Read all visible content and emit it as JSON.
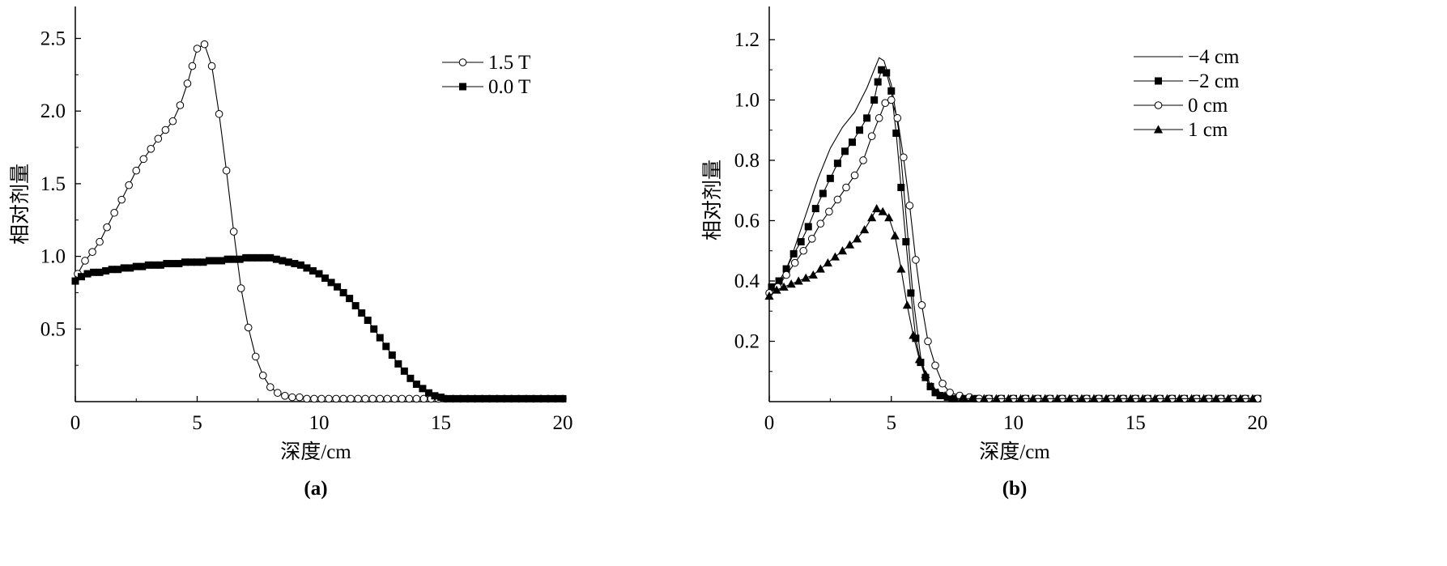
{
  "chart_data": [
    {
      "panel_label": "(a)",
      "type": "line",
      "xlabel": "深度/cm",
      "ylabel": "相对剂量",
      "xlim": [
        0,
        20
      ],
      "ylim": [
        0,
        2.72
      ],
      "xticks": [
        0,
        5,
        10,
        15,
        20
      ],
      "yticks": [
        0.5,
        1.0,
        1.5,
        2.0,
        2.5
      ],
      "ytick_labels": [
        "0.5",
        "1.0",
        "1.5",
        "2.0",
        "2.5"
      ],
      "grid": false,
      "legend_position": "top-right",
      "series": [
        {
          "name": "1.5 T",
          "marker": "open-circle",
          "x": [
            0.1,
            0.4,
            0.7,
            1.0,
            1.3,
            1.6,
            1.9,
            2.2,
            2.5,
            2.8,
            3.1,
            3.4,
            3.7,
            4.0,
            4.3,
            4.6,
            4.8,
            5.0,
            5.3,
            5.6,
            5.9,
            6.2,
            6.5,
            6.8,
            7.1,
            7.4,
            7.7,
            8.0,
            8.3,
            8.6,
            8.9,
            9.2,
            9.5,
            9.8,
            10.1,
            10.4,
            10.7,
            11.0,
            11.3,
            11.6,
            11.9,
            12.2,
            12.5,
            12.8,
            13.1,
            13.4,
            13.7,
            14.0,
            14.3,
            14.6,
            14.9,
            15.2,
            15.5,
            15.8,
            16.1,
            16.4,
            16.7,
            17.0,
            17.3,
            17.6,
            17.9,
            18.2,
            18.5,
            18.8,
            19.1,
            19.4,
            19.7,
            20.0
          ],
          "values": [
            0.88,
            0.97,
            1.03,
            1.1,
            1.2,
            1.3,
            1.39,
            1.49,
            1.59,
            1.67,
            1.74,
            1.81,
            1.87,
            1.93,
            2.04,
            2.19,
            2.31,
            2.43,
            2.46,
            2.31,
            1.98,
            1.59,
            1.17,
            0.78,
            0.51,
            0.31,
            0.18,
            0.1,
            0.06,
            0.04,
            0.03,
            0.03,
            0.02,
            0.02,
            0.02,
            0.02,
            0.02,
            0.02,
            0.02,
            0.02,
            0.02,
            0.02,
            0.02,
            0.02,
            0.02,
            0.02,
            0.02,
            0.02,
            0.02,
            0.02,
            0.02,
            0.02,
            0.02,
            0.02,
            0.02,
            0.02,
            0.02,
            0.02,
            0.02,
            0.02,
            0.02,
            0.02,
            0.02,
            0.02,
            0.02,
            0.02,
            0.02,
            0.02
          ]
        },
        {
          "name": "0.0 T",
          "marker": "filled-square",
          "x": [
            0.0,
            0.25,
            0.5,
            0.75,
            1.0,
            1.25,
            1.5,
            1.75,
            2.0,
            2.25,
            2.5,
            2.75,
            3.0,
            3.25,
            3.5,
            3.75,
            4.0,
            4.25,
            4.5,
            4.75,
            5.0,
            5.25,
            5.5,
            5.75,
            6.0,
            6.25,
            6.5,
            6.75,
            7.0,
            7.25,
            7.5,
            7.75,
            8.0,
            8.25,
            8.5,
            8.75,
            9.0,
            9.25,
            9.5,
            9.75,
            10.0,
            10.25,
            10.5,
            10.75,
            11.0,
            11.25,
            11.5,
            11.75,
            12.0,
            12.25,
            12.5,
            12.75,
            13.0,
            13.25,
            13.5,
            13.75,
            14.0,
            14.25,
            14.5,
            14.75,
            15.0,
            15.25,
            15.5,
            15.75,
            16.0,
            16.25,
            16.5,
            16.75,
            17.0,
            17.25,
            17.5,
            17.75,
            18.0,
            18.25,
            18.5,
            18.75,
            19.0,
            19.25,
            19.5,
            19.75,
            20.0
          ],
          "values": [
            0.83,
            0.86,
            0.88,
            0.89,
            0.89,
            0.9,
            0.91,
            0.91,
            0.92,
            0.92,
            0.93,
            0.93,
            0.94,
            0.94,
            0.94,
            0.95,
            0.95,
            0.95,
            0.96,
            0.96,
            0.96,
            0.96,
            0.97,
            0.97,
            0.97,
            0.98,
            0.98,
            0.98,
            0.99,
            0.99,
            0.99,
            0.99,
            0.99,
            0.98,
            0.97,
            0.96,
            0.95,
            0.94,
            0.92,
            0.9,
            0.88,
            0.85,
            0.82,
            0.79,
            0.75,
            0.71,
            0.66,
            0.61,
            0.56,
            0.5,
            0.44,
            0.38,
            0.32,
            0.26,
            0.21,
            0.16,
            0.12,
            0.09,
            0.06,
            0.04,
            0.03,
            0.02,
            0.02,
            0.02,
            0.02,
            0.02,
            0.02,
            0.02,
            0.02,
            0.02,
            0.02,
            0.02,
            0.02,
            0.02,
            0.02,
            0.02,
            0.02,
            0.02,
            0.02,
            0.02,
            0.02
          ]
        }
      ]
    },
    {
      "panel_label": "(b)",
      "type": "line",
      "xlabel": "深度/cm",
      "ylabel": "相对剂量",
      "xlim": [
        0,
        20
      ],
      "ylim": [
        0,
        1.31
      ],
      "xticks": [
        0,
        5,
        10,
        15,
        20
      ],
      "yticks": [
        0.2,
        0.4,
        0.6,
        0.8,
        1.0,
        1.2
      ],
      "ytick_labels": [
        "0.2",
        "0.4",
        "0.6",
        "0.8",
        "1.0",
        "1.2"
      ],
      "grid": false,
      "legend_position": "top-right",
      "series": [
        {
          "name": "−4 cm",
          "marker": "none",
          "x": [
            0.0,
            0.5,
            1.0,
            1.5,
            2.0,
            2.5,
            3.0,
            3.5,
            4.0,
            4.3,
            4.5,
            4.7,
            5.0,
            5.3,
            5.6,
            5.9,
            6.2,
            6.5,
            6.8,
            7.1,
            7.5,
            8.0,
            9.0,
            10.0,
            12.0,
            14.0,
            16.0,
            18.0,
            20.0
          ],
          "values": [
            0.36,
            0.4,
            0.5,
            0.62,
            0.74,
            0.84,
            0.91,
            0.96,
            1.04,
            1.1,
            1.14,
            1.13,
            1.05,
            0.9,
            0.62,
            0.34,
            0.15,
            0.06,
            0.03,
            0.02,
            0.015,
            0.01,
            0.01,
            0.01,
            0.01,
            0.01,
            0.01,
            0.01,
            0.01
          ]
        },
        {
          "name": "−2 cm",
          "marker": "filled-square",
          "x": [
            0.1,
            0.4,
            0.7,
            1.0,
            1.3,
            1.6,
            1.9,
            2.2,
            2.5,
            2.8,
            3.1,
            3.4,
            3.7,
            4.0,
            4.3,
            4.45,
            4.6,
            4.8,
            5.0,
            5.2,
            5.4,
            5.6,
            5.8,
            6.0,
            6.2,
            6.4,
            6.6,
            6.8,
            7.0,
            7.3,
            7.6,
            8.0,
            8.5,
            9.0,
            9.5,
            10.0,
            10.5,
            11.0,
            11.5,
            12.0,
            12.5,
            13.0,
            13.5,
            14.0,
            14.5,
            15.0,
            15.5,
            16.0,
            16.5,
            17.0,
            17.5,
            18.0,
            18.5,
            19.0,
            19.5,
            20.0
          ],
          "values": [
            0.38,
            0.4,
            0.44,
            0.49,
            0.53,
            0.58,
            0.64,
            0.69,
            0.74,
            0.79,
            0.83,
            0.86,
            0.9,
            0.94,
            1.0,
            1.06,
            1.1,
            1.09,
            1.03,
            0.89,
            0.71,
            0.53,
            0.36,
            0.21,
            0.13,
            0.08,
            0.05,
            0.03,
            0.02,
            0.015,
            0.01,
            0.01,
            0.01,
            0.01,
            0.01,
            0.01,
            0.01,
            0.01,
            0.01,
            0.01,
            0.01,
            0.01,
            0.01,
            0.01,
            0.01,
            0.01,
            0.01,
            0.01,
            0.01,
            0.01,
            0.01,
            0.01,
            0.01,
            0.01,
            0.01,
            0.01
          ]
        },
        {
          "name": "0 cm",
          "marker": "open-circle",
          "x": [
            0.0,
            0.35,
            0.7,
            1.05,
            1.4,
            1.75,
            2.1,
            2.45,
            2.8,
            3.15,
            3.5,
            3.85,
            4.2,
            4.5,
            4.75,
            5.0,
            5.25,
            5.5,
            5.75,
            6.0,
            6.25,
            6.5,
            6.8,
            7.1,
            7.4,
            7.8,
            8.2,
            8.6,
            9.0,
            9.5,
            10.0,
            10.5,
            11.0,
            11.5,
            12.0,
            12.5,
            13.0,
            13.5,
            14.0,
            14.5,
            15.0,
            15.5,
            16.0,
            16.5,
            17.0,
            17.5,
            18.0,
            18.5,
            19.0,
            19.5,
            20.0
          ],
          "values": [
            0.36,
            0.38,
            0.42,
            0.46,
            0.5,
            0.54,
            0.59,
            0.63,
            0.67,
            0.71,
            0.75,
            0.8,
            0.88,
            0.94,
            0.99,
            1.0,
            0.94,
            0.81,
            0.65,
            0.47,
            0.32,
            0.2,
            0.12,
            0.06,
            0.03,
            0.02,
            0.015,
            0.01,
            0.01,
            0.01,
            0.01,
            0.01,
            0.01,
            0.01,
            0.01,
            0.01,
            0.01,
            0.01,
            0.01,
            0.01,
            0.01,
            0.01,
            0.01,
            0.01,
            0.01,
            0.01,
            0.01,
            0.01,
            0.01,
            0.01,
            0.01
          ]
        },
        {
          "name": "1 cm",
          "marker": "filled-triangle",
          "x": [
            0.0,
            0.3,
            0.6,
            0.9,
            1.2,
            1.5,
            1.8,
            2.1,
            2.4,
            2.7,
            3.0,
            3.3,
            3.6,
            3.9,
            4.2,
            4.4,
            4.65,
            4.9,
            5.15,
            5.4,
            5.65,
            5.9,
            6.15,
            6.4,
            6.65,
            6.9,
            7.2,
            7.5,
            7.9,
            8.3,
            8.8,
            9.3,
            9.8,
            10.3,
            10.8,
            11.3,
            11.8,
            12.3,
            12.8,
            13.3,
            13.8,
            14.3,
            14.8,
            15.3,
            15.8,
            16.3,
            16.8,
            17.3,
            17.8,
            18.3,
            18.8,
            19.3,
            19.8
          ],
          "values": [
            0.35,
            0.37,
            0.38,
            0.39,
            0.4,
            0.41,
            0.42,
            0.44,
            0.46,
            0.48,
            0.5,
            0.52,
            0.54,
            0.57,
            0.61,
            0.64,
            0.63,
            0.61,
            0.55,
            0.44,
            0.32,
            0.22,
            0.14,
            0.09,
            0.05,
            0.03,
            0.02,
            0.01,
            0.01,
            0.01,
            0.01,
            0.01,
            0.01,
            0.01,
            0.01,
            0.01,
            0.01,
            0.01,
            0.01,
            0.01,
            0.01,
            0.01,
            0.01,
            0.01,
            0.01,
            0.01,
            0.01,
            0.01,
            0.01,
            0.01,
            0.01,
            0.01,
            0.01
          ]
        }
      ]
    }
  ]
}
